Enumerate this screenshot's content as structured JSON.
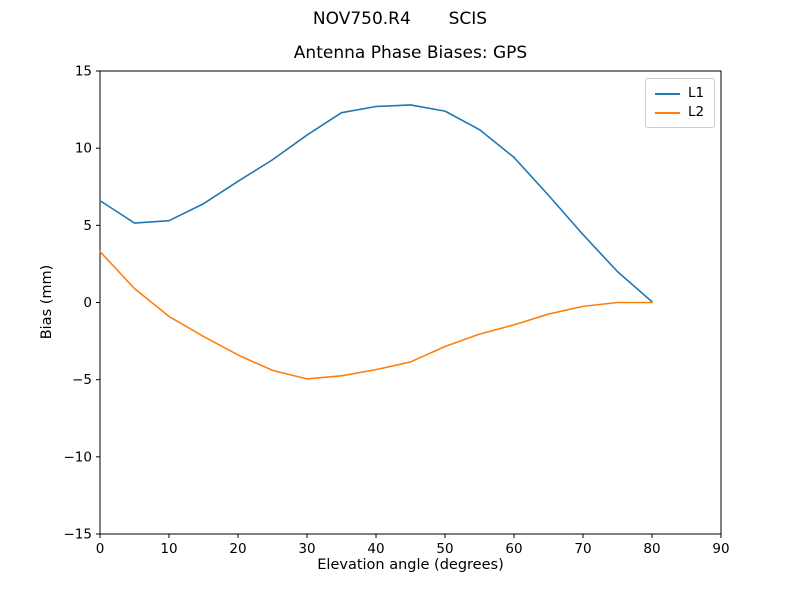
{
  "figure": {
    "suptitle": "NOV750.R4       SCIS",
    "background": "#ffffff"
  },
  "chart_data": {
    "type": "line",
    "title": "Antenna Phase Biases: GPS",
    "xlabel": "Elevation angle (degrees)",
    "ylabel": "Bias (mm)",
    "xlim": [
      0,
      90
    ],
    "ylim": [
      -15,
      15
    ],
    "grid": false,
    "legend_position": "upper right",
    "x": [
      0,
      5,
      10,
      15,
      20,
      25,
      30,
      35,
      40,
      45,
      50,
      55,
      60,
      65,
      70,
      75,
      80
    ],
    "series": [
      {
        "name": "L1",
        "color": "#1f77b4",
        "values": [
          6.6,
          5.15,
          5.3,
          6.4,
          7.85,
          9.25,
          10.85,
          12.3,
          12.7,
          12.8,
          12.4,
          11.2,
          9.4,
          6.95,
          4.4,
          2.0,
          0.05
        ]
      },
      {
        "name": "L2",
        "color": "#ff7f0e",
        "values": [
          3.3,
          0.9,
          -0.9,
          -2.2,
          -3.4,
          -4.4,
          -4.95,
          -4.75,
          -4.35,
          -3.85,
          -2.85,
          -2.05,
          -1.45,
          -0.75,
          -0.25,
          0.0,
          0.0
        ]
      }
    ],
    "xticks": [
      {
        "v": 0,
        "label": "0"
      },
      {
        "v": 10,
        "label": "10"
      },
      {
        "v": 20,
        "label": "20"
      },
      {
        "v": 30,
        "label": "30"
      },
      {
        "v": 40,
        "label": "40"
      },
      {
        "v": 50,
        "label": "50"
      },
      {
        "v": 60,
        "label": "60"
      },
      {
        "v": 70,
        "label": "70"
      },
      {
        "v": 80,
        "label": "80"
      },
      {
        "v": 90,
        "label": "90"
      }
    ],
    "yticks": [
      {
        "v": -15,
        "label": "−15"
      },
      {
        "v": -10,
        "label": "−10"
      },
      {
        "v": -5,
        "label": "−5"
      },
      {
        "v": 0,
        "label": "0"
      },
      {
        "v": 5,
        "label": "5"
      },
      {
        "v": 10,
        "label": "10"
      },
      {
        "v": 15,
        "label": "15"
      }
    ]
  }
}
